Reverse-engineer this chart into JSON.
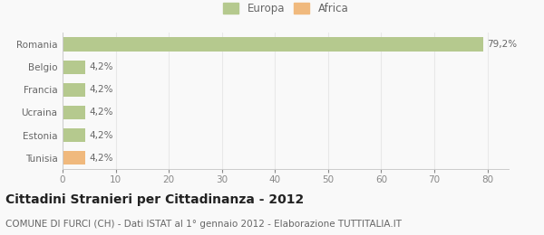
{
  "categories": [
    "Tunisia",
    "Estonia",
    "Ucraina",
    "Francia",
    "Belgio",
    "Romania"
  ],
  "values": [
    4.2,
    4.2,
    4.2,
    4.2,
    4.2,
    79.2
  ],
  "colors": [
    "#f0b97d",
    "#b5c98e",
    "#b5c98e",
    "#b5c98e",
    "#b5c98e",
    "#b5c98e"
  ],
  "bar_labels": [
    "4,2%",
    "4,2%",
    "4,2%",
    "4,2%",
    "4,2%",
    "79,2%"
  ],
  "xlim": [
    0,
    84
  ],
  "xticks": [
    0,
    10,
    20,
    30,
    40,
    50,
    60,
    70,
    80
  ],
  "title": "Cittadini Stranieri per Cittadinanza - 2012",
  "subtitle": "COMUNE DI FURCI (CH) - Dati ISTAT al 1° gennaio 2012 - Elaborazione TUTTITALIA.IT",
  "legend_labels": [
    "Europa",
    "Africa"
  ],
  "legend_colors": [
    "#b5c98e",
    "#f0b97d"
  ],
  "bg_color": "#f9f9f9",
  "grid_color": "#e8e8e8",
  "bar_height": 0.6,
  "title_fontsize": 10,
  "subtitle_fontsize": 7.5,
  "label_fontsize": 7.5,
  "tick_fontsize": 7.5,
  "legend_fontsize": 8.5
}
